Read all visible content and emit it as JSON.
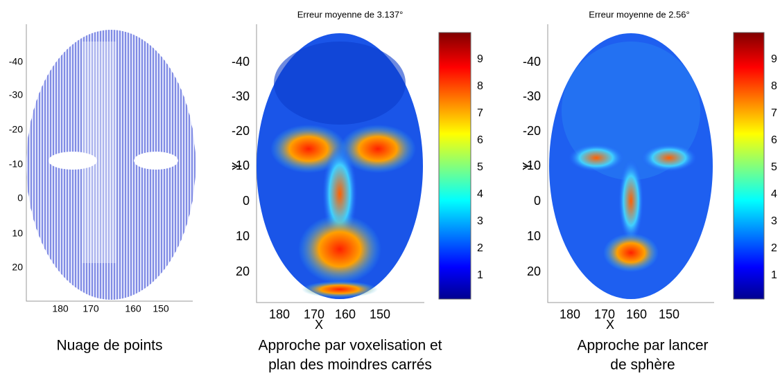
{
  "panels": [
    {
      "caption": [
        "Nuage de points"
      ],
      "yticks": [
        -40,
        -30,
        -20,
        -10,
        0,
        10,
        20
      ],
      "xticks": [
        180,
        170,
        160,
        150
      ]
    },
    {
      "title": "Erreur moyenne de 3.137°",
      "caption": [
        "Approche par voxelisation et",
        "plan des moindres carrés"
      ],
      "xlabel": "X",
      "ylabel": "Y",
      "yticks": [
        -40,
        -30,
        -20,
        -10,
        0,
        10,
        20
      ],
      "xticks": [
        180,
        170,
        160,
        150
      ],
      "colorbar_ticks": [
        1,
        2,
        3,
        4,
        5,
        6,
        7,
        8,
        9
      ]
    },
    {
      "title": "Erreur moyenne de 2.56°",
      "caption": [
        "Approche par lancer",
        "de sphère"
      ],
      "xlabel": "X",
      "ylabel": "Y",
      "yticks": [
        -40,
        -30,
        -20,
        -10,
        0,
        10,
        20
      ],
      "xticks": [
        180,
        170,
        160,
        150
      ],
      "colorbar_ticks": [
        1,
        2,
        3,
        4,
        5,
        6,
        7,
        8,
        9
      ]
    }
  ]
}
